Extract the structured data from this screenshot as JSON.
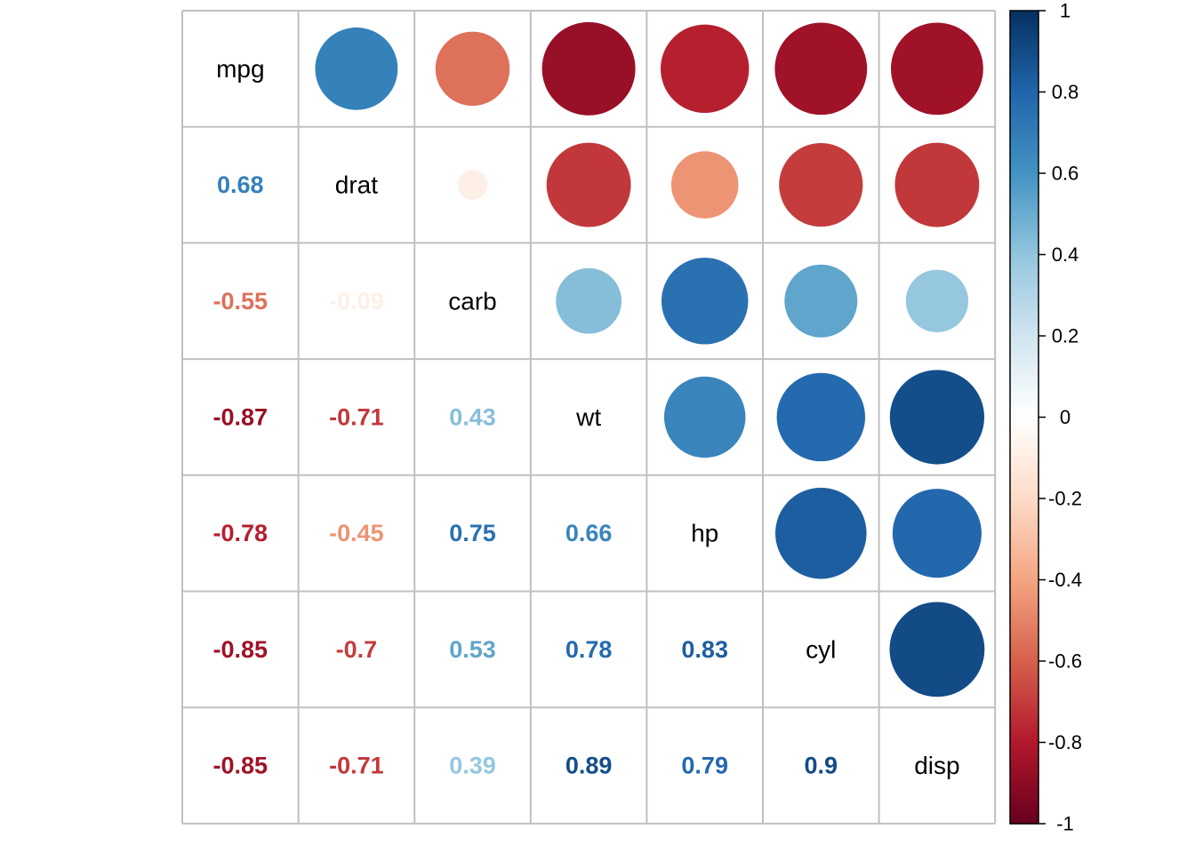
{
  "chart_data": {
    "type": "heatmap",
    "title": "",
    "variables": [
      "mpg",
      "drat",
      "carb",
      "wt",
      "hp",
      "cyl",
      "disp"
    ],
    "matrix": [
      [
        1.0,
        0.68,
        -0.55,
        -0.87,
        -0.78,
        -0.85,
        -0.85
      ],
      [
        0.68,
        1.0,
        -0.09,
        -0.71,
        -0.45,
        -0.7,
        -0.71
      ],
      [
        -0.55,
        -0.09,
        1.0,
        0.43,
        0.75,
        0.53,
        0.39
      ],
      [
        -0.87,
        -0.71,
        0.43,
        1.0,
        0.66,
        0.78,
        0.89
      ],
      [
        -0.78,
        -0.45,
        0.75,
        0.66,
        1.0,
        0.83,
        0.79
      ],
      [
        -0.85,
        -0.7,
        0.53,
        0.78,
        0.83,
        1.0,
        0.9
      ],
      [
        -0.85,
        -0.71,
        0.39,
        0.89,
        0.79,
        0.9,
        1.0
      ]
    ],
    "coefficient_labels": [
      [
        "",
        "",
        "",
        "",
        "",
        "",
        ""
      ],
      [
        "0.68",
        "",
        "",
        "",
        "",
        "",
        ""
      ],
      [
        "-0.55",
        "-0.09",
        "",
        "",
        "",
        "",
        ""
      ],
      [
        "-0.87",
        "-0.71",
        "0.43",
        "",
        "",
        "",
        ""
      ],
      [
        "-0.78",
        "-0.45",
        "0.75",
        "0.66",
        "",
        "",
        ""
      ],
      [
        "-0.85",
        "-0.7",
        "0.53",
        "0.78",
        "0.83",
        "",
        ""
      ],
      [
        "-0.85",
        "-0.71",
        "0.39",
        "0.89",
        "0.79",
        "0.9",
        ""
      ]
    ],
    "upper_triangle": "circle",
    "lower_triangle": "number",
    "diagonal": "variable-name",
    "colorbar": {
      "range": [
        -1,
        1
      ],
      "ticks": [
        -1,
        -0.8,
        -0.6,
        -0.4,
        -0.2,
        0,
        0.2,
        0.4,
        0.6,
        0.8,
        1
      ],
      "tick_labels": [
        "-1",
        "-0.8",
        "-0.6",
        "-0.4",
        "-0.2",
        "0",
        "0.2",
        "0.4",
        "0.6",
        "0.8",
        "1"
      ],
      "placement": "right",
      "colors": [
        "#67001F",
        "#B2182B",
        "#D6604D",
        "#F4A582",
        "#FDDBC7",
        "#FFFFFF",
        "#D1E5F0",
        "#92C5DE",
        "#4393C3",
        "#2166AC",
        "#053061"
      ]
    },
    "grid": true
  }
}
